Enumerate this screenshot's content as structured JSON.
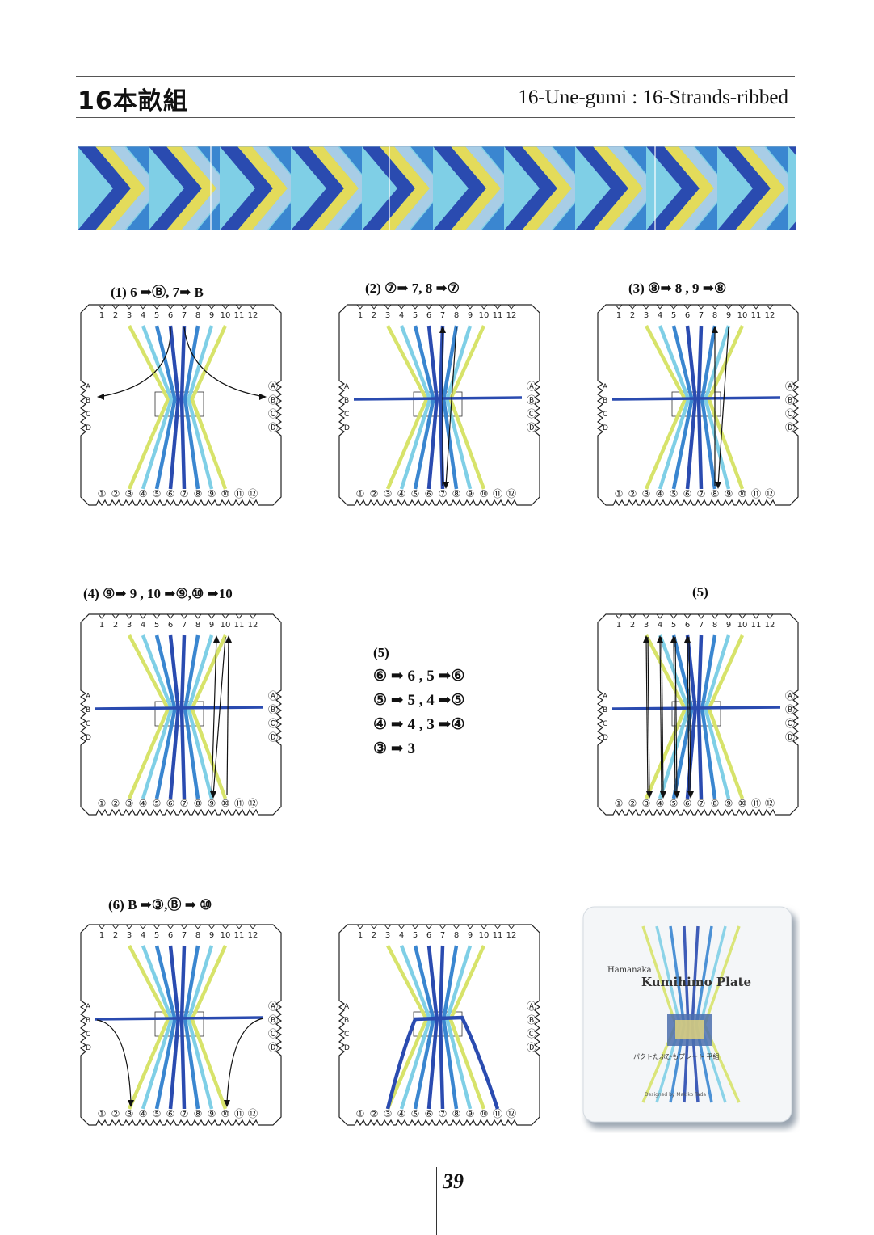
{
  "header": {
    "title_jp": "16本畝組",
    "title_en": "16-Une-gumi : 16-Strands-ribbed"
  },
  "colors": {
    "dark_blue": "#2a4bb0",
    "mid_blue": "#3a86d0",
    "light_blue": "#7fcfe6",
    "yellow": "#d7e36a",
    "arrow": "#111111"
  },
  "plate": {
    "top_numbers": [
      "1",
      "2",
      "3",
      "4",
      "5",
      "6",
      "7",
      "8",
      "9",
      "10",
      "11",
      "12"
    ],
    "bottom_numbers": [
      "①",
      "②",
      "③",
      "④",
      "⑤",
      "⑥",
      "⑦",
      "⑧",
      "⑨",
      "⑩",
      "⑪",
      "⑫"
    ],
    "left_letters": [
      "A",
      "B",
      "C",
      "D"
    ],
    "right_letters": [
      "Ⓐ",
      "Ⓑ",
      "Ⓒ",
      "Ⓓ"
    ]
  },
  "steps": {
    "s1": "(1)  6 ➡Ⓑ, 7➡ B",
    "s2": "(2) ⑦➡  7, 8 ➡⑦",
    "s3": "(3) ⑧➡  8 , 9 ➡⑧",
    "s4": "(4) ⑨➡ 9 , 10 ➡⑨,⑩ ➡10",
    "s5_right": "(5)",
    "s6": "(6)  B ➡③,Ⓑ ➡ ⑩"
  },
  "step5_block": {
    "heading": "(5)",
    "lines": [
      "⑥ ➡ 6 , 5  ➡⑥",
      "⑤ ➡ 5 , 4  ➡⑤",
      "④ ➡ 4 , 3  ➡④",
      "③ ➡ 3"
    ]
  },
  "photo": {
    "brand": "Hamanaka",
    "title": "Kumihimo Plate",
    "caption": "パクトたぶひもプレート 平組",
    "designer": "Designed by Makiko Tada"
  },
  "page_number": "39"
}
